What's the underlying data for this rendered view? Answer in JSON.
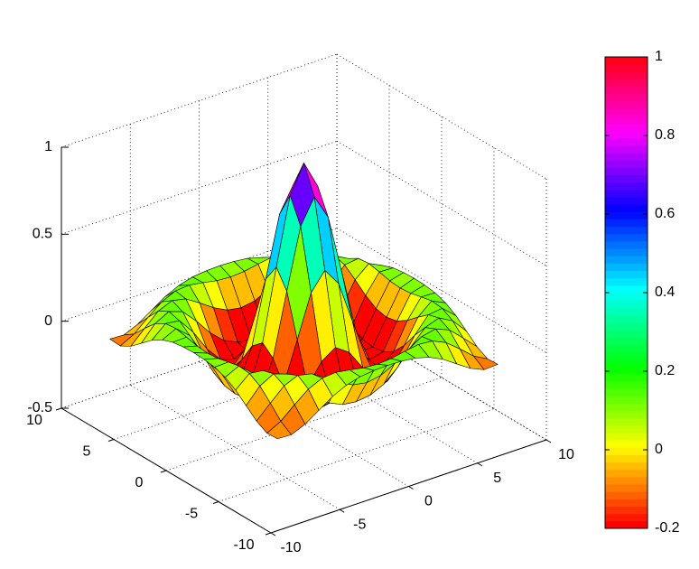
{
  "chart_data": {
    "type": "surface",
    "colormap": "hsv",
    "grid": true,
    "colorbar": true,
    "x": [
      -8,
      -7,
      -6,
      -5,
      -4,
      -3,
      -2,
      -1,
      0,
      1,
      2,
      3,
      4,
      5,
      6,
      7,
      8
    ],
    "y": [
      -8,
      -7,
      -6,
      -5,
      -4,
      -3,
      -2,
      -1,
      0,
      1,
      2,
      3,
      4,
      5,
      6,
      7,
      8
    ],
    "z": [
      [
        -0.084,
        -0.088,
        -0.054,
        -0.001,
        0.052,
        0.09,
        0.112,
        0.121,
        0.124,
        0.121,
        0.112,
        0.09,
        0.052,
        -0.001,
        -0.054,
        -0.088,
        -0.084
      ],
      [
        -0.088,
        -0.046,
        0.022,
        0.085,
        0.121,
        0.128,
        0.115,
        0.1,
        0.094,
        0.1,
        0.115,
        0.128,
        0.121,
        0.085,
        0.022,
        -0.046,
        -0.088
      ],
      [
        -0.054,
        0.022,
        0.095,
        0.128,
        0.111,
        0.061,
        0.007,
        -0.033,
        -0.047,
        -0.033,
        0.007,
        0.061,
        0.111,
        0.128,
        0.095,
        0.022,
        -0.054
      ],
      [
        -0.001,
        0.085,
        0.128,
        0.1,
        0.019,
        -0.075,
        -0.145,
        -0.182,
        -0.192,
        -0.182,
        -0.145,
        -0.075,
        0.019,
        0.1,
        0.128,
        0.085,
        -0.001
      ],
      [
        0.052,
        0.121,
        0.111,
        0.019,
        -0.104,
        -0.192,
        -0.217,
        -0.202,
        -0.189,
        -0.202,
        -0.217,
        -0.192,
        -0.104,
        0.019,
        0.111,
        0.121,
        0.052
      ],
      [
        0.09,
        0.128,
        0.061,
        -0.075,
        -0.192,
        -0.21,
        -0.124,
        -0.007,
        0.047,
        -0.007,
        -0.124,
        -0.21,
        -0.192,
        -0.075,
        0.061,
        0.128,
        0.09
      ],
      [
        0.112,
        0.115,
        0.007,
        -0.145,
        -0.217,
        -0.124,
        0.109,
        0.352,
        0.455,
        0.352,
        0.109,
        -0.124,
        -0.217,
        -0.145,
        0.007,
        0.115,
        0.112
      ],
      [
        0.121,
        0.1,
        -0.033,
        -0.182,
        -0.202,
        -0.007,
        0.352,
        0.698,
        0.841,
        0.698,
        0.352,
        -0.007,
        -0.202,
        -0.182,
        -0.033,
        0.1,
        0.121
      ],
      [
        0.124,
        0.094,
        -0.047,
        -0.192,
        -0.189,
        0.047,
        0.455,
        0.841,
        1,
        0.841,
        0.455,
        0.047,
        -0.189,
        -0.192,
        -0.047,
        0.094,
        0.124
      ],
      [
        0.121,
        0.1,
        -0.033,
        -0.182,
        -0.202,
        -0.007,
        0.352,
        0.698,
        0.841,
        0.698,
        0.352,
        -0.007,
        -0.202,
        -0.182,
        -0.033,
        0.1,
        0.121
      ],
      [
        0.112,
        0.115,
        0.007,
        -0.145,
        -0.217,
        -0.124,
        0.109,
        0.352,
        0.455,
        0.352,
        0.109,
        -0.124,
        -0.217,
        -0.145,
        0.007,
        0.115,
        0.112
      ],
      [
        0.09,
        0.128,
        0.061,
        -0.075,
        -0.192,
        -0.21,
        -0.124,
        -0.007,
        0.047,
        -0.007,
        -0.124,
        -0.21,
        -0.192,
        -0.075,
        0.061,
        0.128,
        0.09
      ],
      [
        0.052,
        0.121,
        0.111,
        0.019,
        -0.104,
        -0.192,
        -0.217,
        -0.202,
        -0.189,
        -0.202,
        -0.217,
        -0.192,
        -0.104,
        0.019,
        0.111,
        0.121,
        0.052
      ],
      [
        -0.001,
        0.085,
        0.128,
        0.1,
        0.019,
        -0.075,
        -0.145,
        -0.182,
        -0.192,
        -0.182,
        -0.145,
        -0.075,
        0.019,
        0.1,
        0.128,
        0.085,
        -0.001
      ],
      [
        -0.054,
        0.022,
        0.095,
        0.128,
        0.111,
        0.061,
        0.007,
        -0.033,
        -0.047,
        -0.033,
        0.007,
        0.061,
        0.111,
        0.128,
        0.095,
        0.022,
        -0.054
      ],
      [
        -0.088,
        -0.046,
        0.022,
        0.085,
        0.121,
        0.128,
        0.115,
        0.1,
        0.094,
        0.1,
        0.115,
        0.128,
        0.121,
        0.085,
        0.022,
        -0.046,
        -0.088
      ],
      [
        -0.084,
        -0.088,
        -0.054,
        -0.001,
        0.052,
        0.09,
        0.112,
        0.121,
        0.124,
        0.121,
        0.112,
        0.09,
        0.052,
        -0.001,
        -0.054,
        -0.088,
        -0.084
      ]
    ],
    "xlim": [
      -10,
      10
    ],
    "xticks": [
      -10,
      -5,
      0,
      5,
      10
    ],
    "ylim": [
      -10,
      10
    ],
    "yticks": [
      -10,
      -5,
      0,
      5,
      10
    ],
    "zlim": [
      -0.5,
      1
    ],
    "zticks": [
      -0.5,
      0,
      0.5,
      1
    ],
    "clim": [
      -0.2,
      1
    ],
    "cticks": [
      -0.2,
      0,
      0.2,
      0.4,
      0.6,
      0.8,
      1
    ]
  }
}
